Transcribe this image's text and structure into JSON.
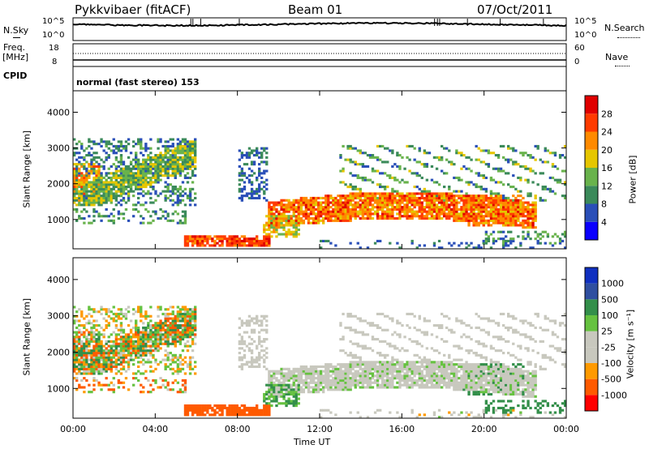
{
  "header": {
    "station": "Pykkvibaer (fitACF)",
    "beam": "Beam 01",
    "date": "07/Oct/2011"
  },
  "noise_panel": {
    "left_label": "N.Sky",
    "left_ticks": [
      "10^5",
      "10^0"
    ],
    "right_ticks": [
      "10^5",
      "10^0"
    ],
    "right_label": "N.Search"
  },
  "freq_panel": {
    "left_label_1": "Freq.",
    "left_label_2": "[MHz]",
    "left_ticks": [
      "18",
      "8"
    ],
    "right_ticks": [
      "60",
      "0"
    ],
    "right_label": "Nave"
  },
  "cpid": {
    "label": "CPID",
    "mode_text": "normal (fast stereo) 153"
  },
  "x_axis": {
    "label": "Time UT",
    "ticks": [
      "00:00",
      "04:00",
      "08:00",
      "12:00",
      "16:00",
      "20:00",
      "00:00"
    ]
  },
  "colors": {
    "power_scale": [
      "#0a00ff",
      "#2a4fb8",
      "#3b8a5a",
      "#69b34c",
      "#e6c600",
      "#ff8a00",
      "#ff3b00",
      "#e00000"
    ],
    "velocity_scale": [
      "#ff0000",
      "#ff5a00",
      "#ff9a00",
      "#c8c8be",
      "#c8c8be",
      "#66c240",
      "#338f4a",
      "#2f4fa0",
      "#1030c0"
    ],
    "noise_line": "#000000"
  },
  "chart_data": [
    {
      "type": "heatmap",
      "name": "power",
      "ylabel": "Slant Range [km]",
      "yticks": [
        1000,
        2000,
        3000,
        4000
      ],
      "ylim": [
        180,
        4600
      ],
      "xlim_hours": [
        0,
        24
      ],
      "colorbar_label": "Power [dB]",
      "colorbar_ticks": [
        4,
        8,
        12,
        16,
        20,
        24,
        28
      ],
      "colorbar_range": [
        0,
        32
      ],
      "features": [
        {
          "hours": [
            0,
            6
          ],
          "range_km": [
            1400,
            3200
          ],
          "desc": "mixed scatter"
        },
        {
          "hours": [
            5.5,
            9.5
          ],
          "range_km": [
            250,
            550
          ],
          "power_db": 26
        },
        {
          "hours": [
            10,
            22
          ],
          "range_km": [
            700,
            1700
          ],
          "power_db": 24
        },
        {
          "hours": [
            16,
            24
          ],
          "range_km": [
            1500,
            3000
          ],
          "power_db": 14
        }
      ]
    },
    {
      "type": "heatmap",
      "name": "velocity",
      "ylabel": "Slant Range [km]",
      "yticks": [
        1000,
        2000,
        3000,
        4000
      ],
      "ylim": [
        180,
        4600
      ],
      "xlim_hours": [
        0,
        24
      ],
      "colorbar_label": "Velocity [m s⁻¹]",
      "colorbar_ticks": [
        1000,
        500,
        100,
        25,
        -25,
        -100,
        -500,
        -1000
      ],
      "features": [
        {
          "hours": [
            5.5,
            9.5
          ],
          "range_km": [
            250,
            550
          ],
          "velocity": -300
        },
        {
          "hours": [
            10,
            22
          ],
          "range_km": [
            700,
            1700
          ],
          "velocity": 0
        },
        {
          "hours": [
            19,
            22
          ],
          "range_km": [
            800,
            1600
          ],
          "velocity": 150
        }
      ]
    }
  ]
}
